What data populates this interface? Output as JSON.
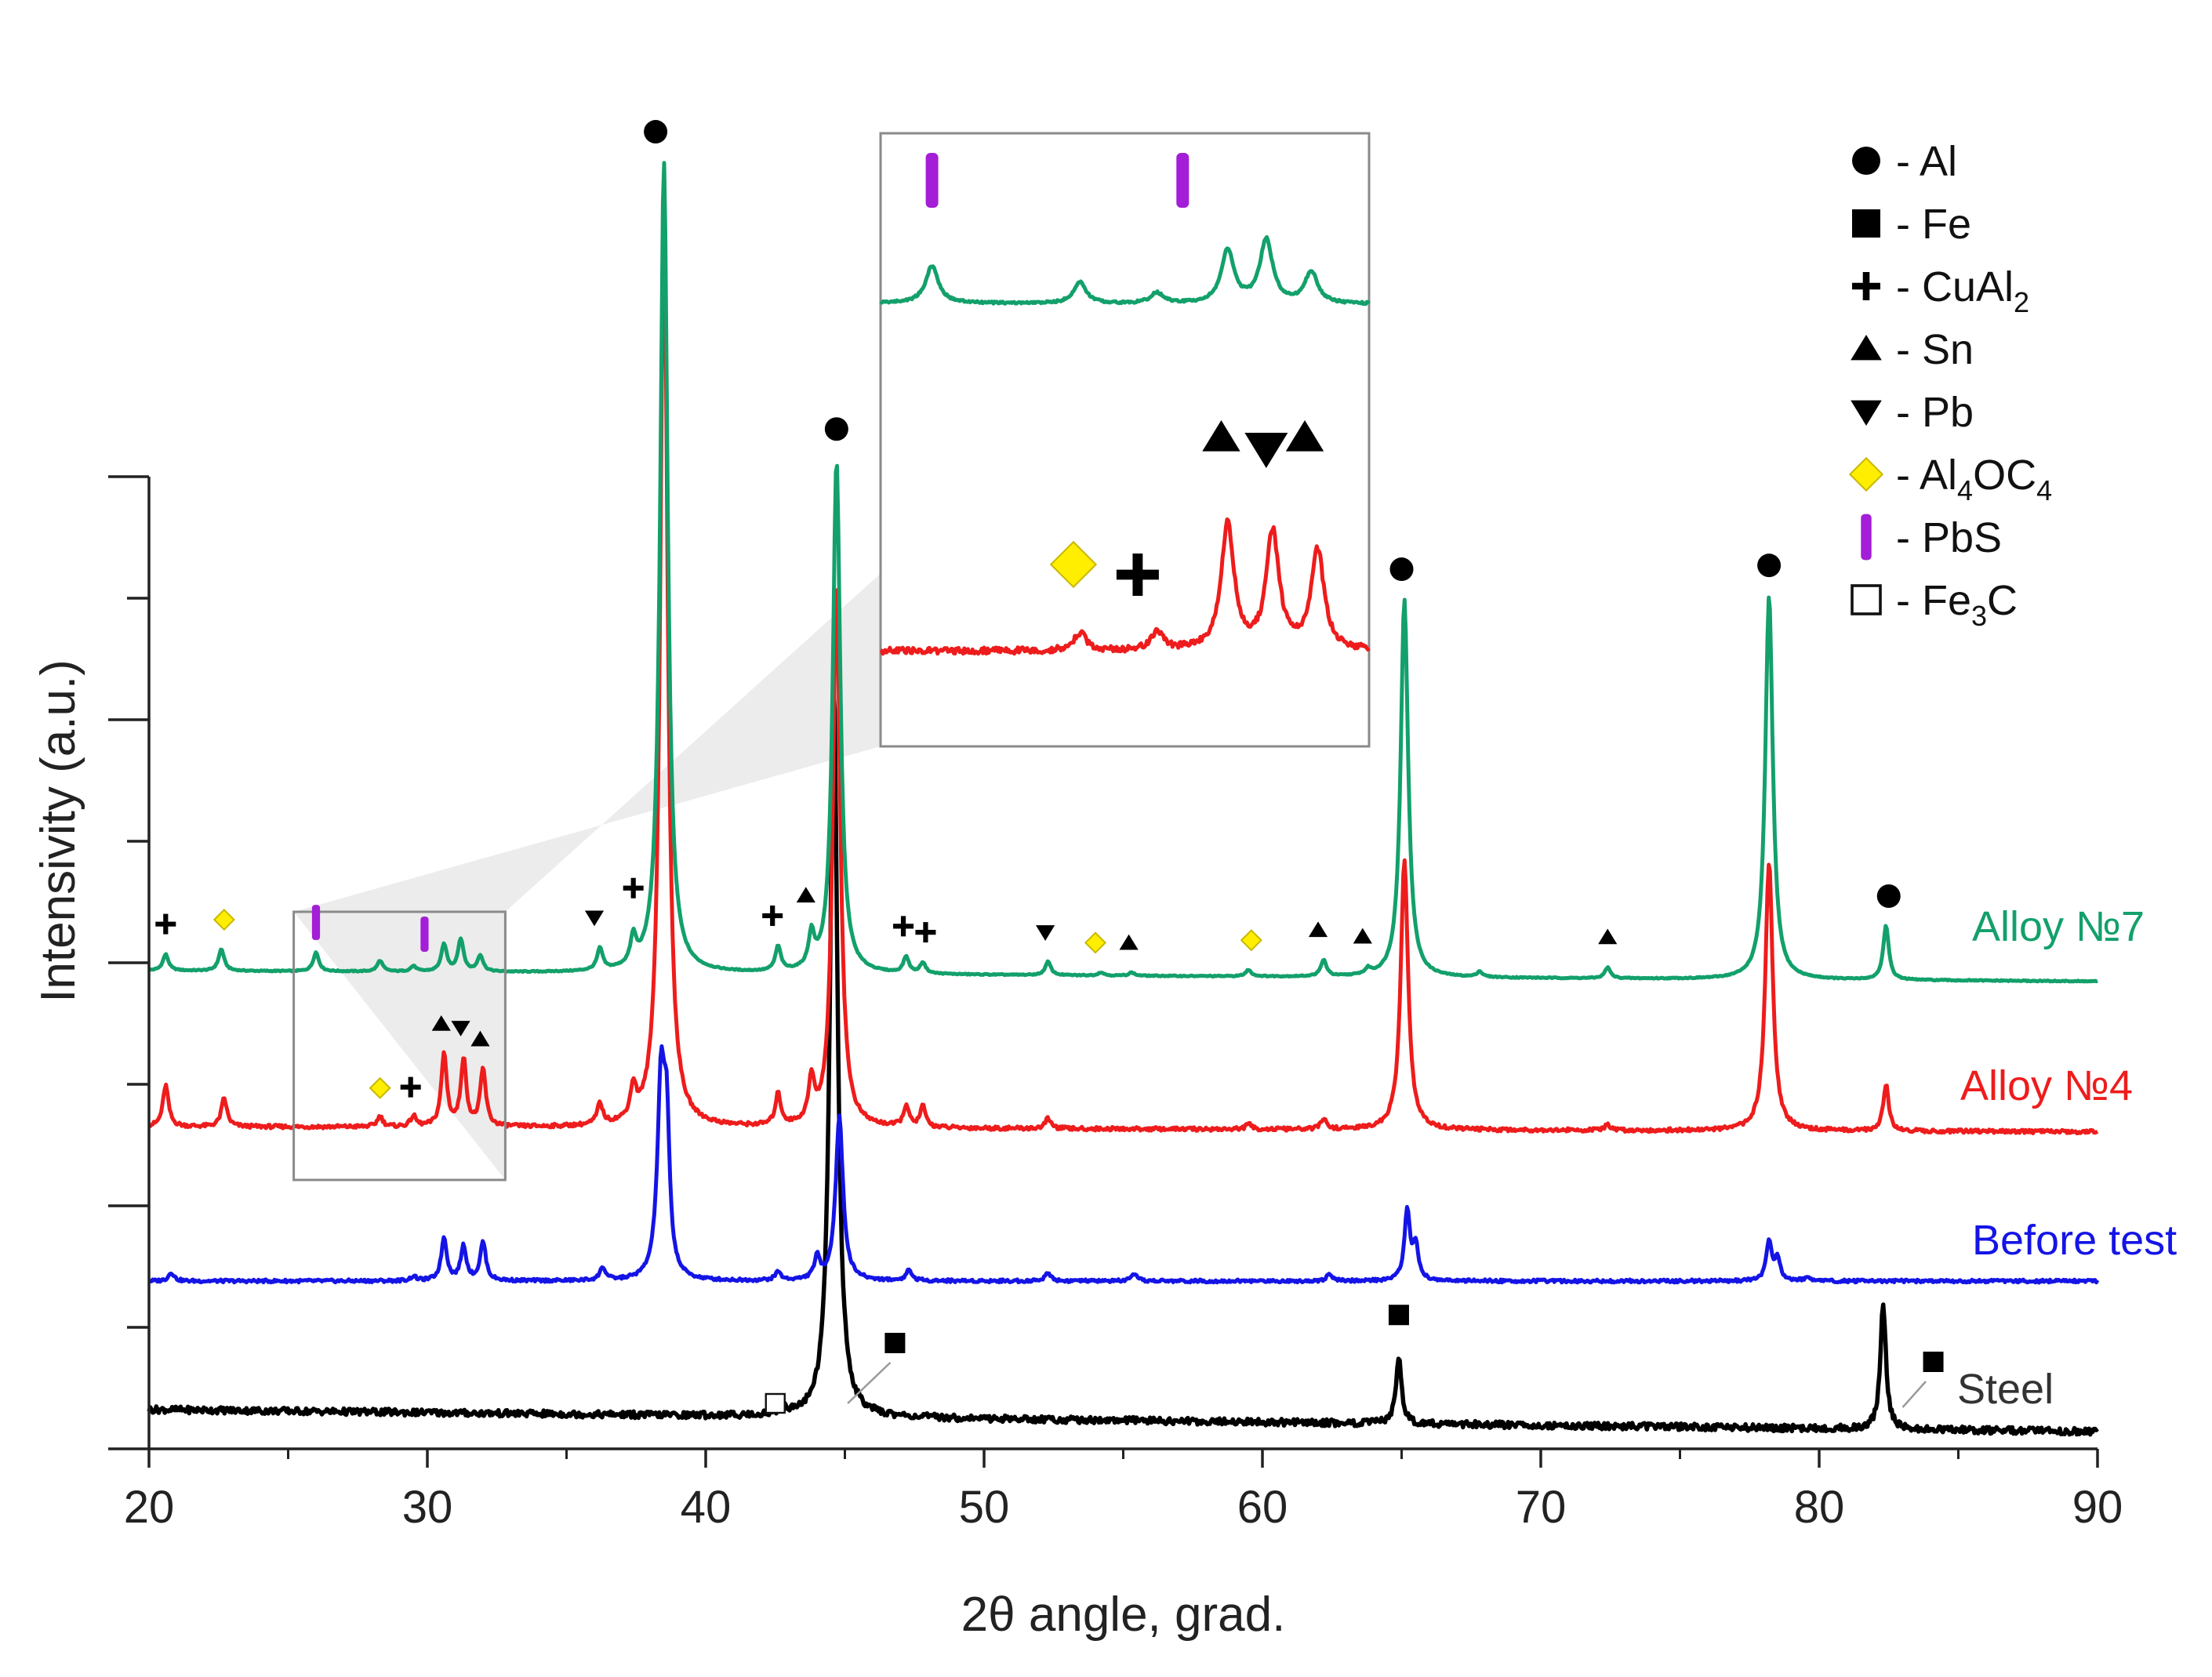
{
  "chart_data": {
    "type": "line",
    "title": "",
    "xlabel": "2θ angle, grad.",
    "ylabel": "Intensivity (a.u.)",
    "xlim": [
      20,
      90
    ],
    "xticks": [
      20,
      30,
      40,
      50,
      60,
      70,
      80,
      90
    ],
    "ytick_count": 9,
    "grid": false,
    "legend_position": "top-right",
    "y_units": "relative intensity (0-1 per series); series are vertically offset",
    "legend": [
      {
        "symbol": "circle",
        "label": "- Al"
      },
      {
        "symbol": "square",
        "label": "- Fe"
      },
      {
        "symbol": "plus",
        "label": "- CuAl",
        "subscript": "2"
      },
      {
        "symbol": "triangle-up",
        "label": "- Sn"
      },
      {
        "symbol": "triangle-down",
        "label": "- Pb"
      },
      {
        "symbol": "diamond",
        "label": "- Al",
        "subscript": "4",
        "label2": "OC",
        "subscript2": "4"
      },
      {
        "symbol": "bar",
        "label": "- PbS"
      },
      {
        "symbol": "open-square",
        "label": "- Fe",
        "subscript": "3",
        "label2": "C"
      }
    ],
    "series": [
      {
        "name": "Alloy №7",
        "label_text": "Alloy №7",
        "color": "#13a06b",
        "baseline_start": 0.0,
        "baseline_end": -0.02,
        "peaks": [
          [
            20.6,
            0.03
          ],
          [
            22.6,
            0.04
          ],
          [
            26.0,
            0.035
          ],
          [
            28.3,
            0.02
          ],
          [
            29.5,
            0.01
          ],
          [
            30.6,
            0.05
          ],
          [
            31.2,
            0.06
          ],
          [
            31.9,
            0.03
          ],
          [
            36.2,
            0.04
          ],
          [
            37.4,
            0.05
          ],
          [
            38.5,
            1.5
          ],
          [
            42.6,
            0.045
          ],
          [
            43.8,
            0.06
          ],
          [
            44.7,
            0.95
          ],
          [
            47.2,
            0.03
          ],
          [
            47.8,
            0.02
          ],
          [
            52.3,
            0.025
          ],
          [
            54.2,
            0.006
          ],
          [
            55.3,
            0.006
          ],
          [
            59.5,
            0.012
          ],
          [
            62.2,
            0.03
          ],
          [
            63.8,
            0.01
          ],
          [
            65.1,
            0.7
          ],
          [
            67.8,
            0.01
          ],
          [
            72.4,
            0.02
          ],
          [
            78.2,
            0.71
          ],
          [
            82.4,
            0.1
          ]
        ],
        "markers": [
          {
            "symbol": "plus",
            "x": 20.6
          },
          {
            "symbol": "diamond",
            "x": 22.7
          },
          {
            "symbol": "bar",
            "x": 26.0
          },
          {
            "symbol": "bar",
            "x": 29.9
          },
          {
            "symbol": "triangle-down",
            "x": 36.0
          },
          {
            "symbol": "plus",
            "x": 37.4
          },
          {
            "symbol": "circle",
            "x": 38.2
          },
          {
            "symbol": "plus",
            "x": 42.4
          },
          {
            "symbol": "triangle-up",
            "x": 43.6
          },
          {
            "symbol": "circle",
            "x": 44.7
          },
          {
            "symbol": "plus",
            "x": 47.1
          },
          {
            "symbol": "plus",
            "x": 47.9
          },
          {
            "symbol": "triangle-down",
            "x": 52.2
          },
          {
            "symbol": "diamond",
            "x": 54.0
          },
          {
            "symbol": "triangle-up",
            "x": 55.2
          },
          {
            "symbol": "diamond",
            "x": 59.6
          },
          {
            "symbol": "triangle-up",
            "x": 62.0
          },
          {
            "symbol": "triangle-up",
            "x": 63.6
          },
          {
            "symbol": "circle",
            "x": 65.0
          },
          {
            "symbol": "triangle-up",
            "x": 72.4
          },
          {
            "symbol": "circle",
            "x": 78.2
          },
          {
            "symbol": "circle",
            "x": 82.5
          }
        ]
      },
      {
        "name": "Alloy №4",
        "label_text": "Alloy №4",
        "color": "#ee1c1c",
        "baseline_start": 0.0,
        "baseline_end": -0.01,
        "peaks": [
          [
            20.6,
            0.08
          ],
          [
            22.7,
            0.055
          ],
          [
            28.3,
            0.02
          ],
          [
            29.5,
            0.02
          ],
          [
            30.6,
            0.14
          ],
          [
            31.3,
            0.13
          ],
          [
            32.0,
            0.11
          ],
          [
            36.2,
            0.04
          ],
          [
            37.4,
            0.06
          ],
          [
            38.5,
            1.78
          ],
          [
            42.6,
            0.06
          ],
          [
            43.8,
            0.08
          ],
          [
            44.7,
            1.05
          ],
          [
            47.2,
            0.04
          ],
          [
            47.8,
            0.04
          ],
          [
            52.3,
            0.02
          ],
          [
            59.5,
            0.01
          ],
          [
            62.2,
            0.02
          ],
          [
            65.1,
            0.52
          ],
          [
            72.4,
            0.01
          ],
          [
            78.2,
            0.52
          ],
          [
            82.4,
            0.09
          ]
        ],
        "markers": [
          {
            "symbol": "diamond",
            "x": 28.3
          },
          {
            "symbol": "plus",
            "x": 29.4
          },
          {
            "symbol": "triangle-up",
            "x": 30.5
          },
          {
            "symbol": "triangle-down",
            "x": 31.2
          },
          {
            "symbol": "triangle-up",
            "x": 31.9
          }
        ]
      },
      {
        "name": "Before test",
        "label_text": "Before test",
        "color": "#1414e6",
        "baseline_start": 0.0,
        "baseline_end": 0.0,
        "peaks": [
          [
            20.8,
            0.02
          ],
          [
            29.5,
            0.01
          ],
          [
            30.6,
            0.1
          ],
          [
            31.3,
            0.08
          ],
          [
            32.0,
            0.09
          ],
          [
            36.3,
            0.03
          ],
          [
            38.4,
            0.46
          ],
          [
            38.6,
            0.3
          ],
          [
            42.6,
            0.02
          ],
          [
            44.0,
            0.05
          ],
          [
            44.8,
            0.38
          ],
          [
            47.3,
            0.025
          ],
          [
            52.3,
            0.02
          ],
          [
            55.4,
            0.015
          ],
          [
            62.4,
            0.015
          ],
          [
            65.2,
            0.16
          ],
          [
            65.5,
            0.08
          ],
          [
            78.2,
            0.09
          ],
          [
            78.5,
            0.05
          ],
          [
            79.6,
            0.01
          ]
        ],
        "markers": []
      },
      {
        "name": "Steel",
        "label_text": "Steel",
        "color": "#000000",
        "baseline_start": 0.03,
        "baseline_end": 0.0,
        "peaks": [
          [
            42.8,
            0.01
          ],
          [
            44.6,
            1.0
          ],
          [
            64.9,
            0.09
          ],
          [
            82.3,
            0.17
          ]
        ],
        "markers": [
          {
            "symbol": "open-square",
            "x": 42.5
          },
          {
            "symbol": "square",
            "x": 46.8
          },
          {
            "symbol": "square",
            "x": 64.9
          },
          {
            "symbol": "square",
            "x": 84.1
          }
        ]
      }
    ],
    "inset": {
      "x_range": [
        25.2,
        32.8
      ],
      "source_series": [
        "Alloy №7",
        "Alloy №4"
      ],
      "markers_alloy7": [
        {
          "symbol": "bar",
          "x": 26.0
        },
        {
          "symbol": "bar",
          "x": 29.9
        }
      ],
      "markers_alloy4": [
        {
          "symbol": "diamond",
          "x": 28.2
        },
        {
          "symbol": "plus",
          "x": 29.2
        },
        {
          "symbol": "triangle-up",
          "x": 30.5
        },
        {
          "symbol": "triangle-down",
          "x": 31.2
        },
        {
          "symbol": "triangle-up",
          "x": 31.8
        }
      ]
    }
  }
}
